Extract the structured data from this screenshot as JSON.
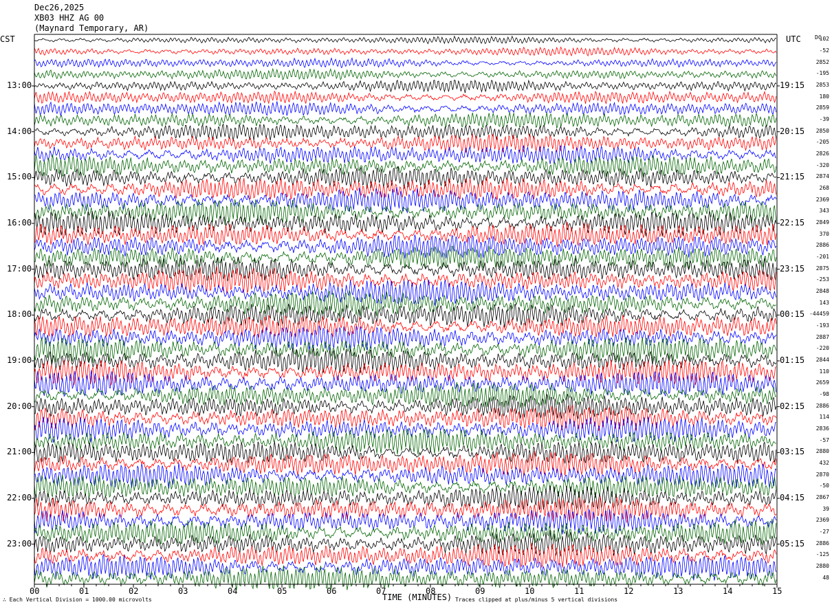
{
  "header": {
    "date": "Dec26,2025",
    "station": "XB03 HHZ AG 00",
    "location": "(Maynard Temporary, AR)"
  },
  "axes": {
    "left_zone": "CST",
    "right_zone": "UTC",
    "dc_header": "DC",
    "xlabel": "TIME (MINUTES)",
    "x_ticks": [
      "00",
      "01",
      "02",
      "03",
      "04",
      "05",
      "06",
      "07",
      "08",
      "09",
      "10",
      "11",
      "12",
      "13",
      "14",
      "15"
    ]
  },
  "footer": {
    "left": "Each Vertical Division = 1000.00 microvolts",
    "right": "Traces clipped at plus/minus 5 vertical divisions"
  },
  "chart_data": {
    "type": "line",
    "trace_minutes": 15,
    "trace_count": 48,
    "colors": [
      "#000000",
      "#ff0000",
      "#0000ff",
      "#006400"
    ],
    "left_hour_labels": [
      "13:00",
      "14:00",
      "15:00",
      "16:00",
      "17:00",
      "18:00",
      "19:00",
      "20:00",
      "21:00",
      "22:00",
      "23:00"
    ],
    "right_hour_labels": [
      "19:15",
      "20:15",
      "21:15",
      "22:15",
      "23:15",
      "00:15",
      "01:15",
      "02:15",
      "03:15",
      "04:15",
      "05:15"
    ],
    "dc_values": [
      "102",
      "-52",
      "2852",
      "-195",
      "2853",
      "180",
      "2859",
      "-39",
      "2850",
      "-205",
      "2826",
      "-320",
      "2874",
      "268",
      "2369",
      "343",
      "2849",
      "370",
      "2886",
      "-201",
      "2875",
      "-253",
      "2848",
      "143",
      "-44459",
      "-193",
      "2887",
      "-220",
      "2844",
      "110",
      "2659",
      "-98",
      "2886",
      "114",
      "2836",
      "-57",
      "2880",
      "432",
      "2870",
      "-50",
      "2867",
      "39",
      "2369",
      "-27",
      "2886",
      "-125",
      "2880",
      "48"
    ]
  }
}
